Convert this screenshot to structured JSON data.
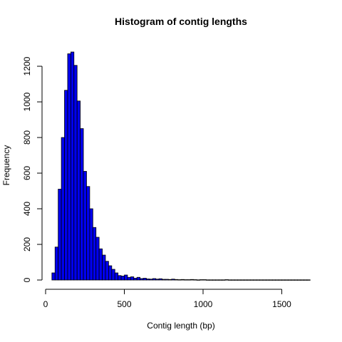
{
  "chart_data": {
    "type": "bar",
    "title": "Histogram of contig lengths",
    "xlabel": "Contig length (bp)",
    "ylabel": "Frequency",
    "bin_width": 20,
    "bins_start": [
      40,
      60,
      80,
      100,
      120,
      140,
      160,
      180,
      200,
      220,
      240,
      260,
      280,
      300,
      320,
      340,
      360,
      380,
      400,
      420,
      440,
      460,
      480,
      500,
      520,
      540,
      560,
      580,
      600,
      620,
      640,
      660,
      680,
      700,
      720,
      740,
      760,
      780,
      800,
      820,
      840,
      860,
      880,
      900,
      920,
      940,
      960,
      980,
      1000,
      1020,
      1040,
      1060,
      1080,
      1100,
      1120,
      1140,
      1160,
      1180,
      1200,
      1220,
      1240,
      1260,
      1280,
      1300,
      1320,
      1340,
      1360,
      1380,
      1400,
      1420,
      1440,
      1460,
      1480,
      1500,
      1520,
      1540,
      1560,
      1580,
      1600,
      1620,
      1640,
      1660
    ],
    "values": [
      40,
      185,
      510,
      800,
      1065,
      1270,
      1280,
      1205,
      1005,
      850,
      610,
      525,
      400,
      295,
      240,
      175,
      140,
      105,
      80,
      60,
      40,
      25,
      22,
      28,
      15,
      18,
      10,
      15,
      8,
      10,
      6,
      5,
      8,
      5,
      7,
      4,
      4,
      3,
      5,
      3,
      2,
      3,
      2,
      2,
      3,
      2,
      1,
      2,
      2,
      1,
      1,
      1,
      1,
      1,
      1,
      2,
      1,
      1,
      1,
      1,
      1,
      1,
      1,
      1,
      1,
      1,
      1,
      1,
      1,
      1,
      1,
      1,
      1,
      1,
      1,
      1,
      1,
      1,
      1,
      1,
      1,
      1
    ],
    "xlim": [
      -20,
      1700
    ],
    "ylim": [
      0,
      1330
    ],
    "x_ticks": [
      "0",
      "500",
      "1000",
      "1500"
    ],
    "y_ticks": [
      "0",
      "200",
      "400",
      "600",
      "800",
      "1000",
      "1200"
    ],
    "grid": false,
    "bar_color": "#0000ee"
  }
}
